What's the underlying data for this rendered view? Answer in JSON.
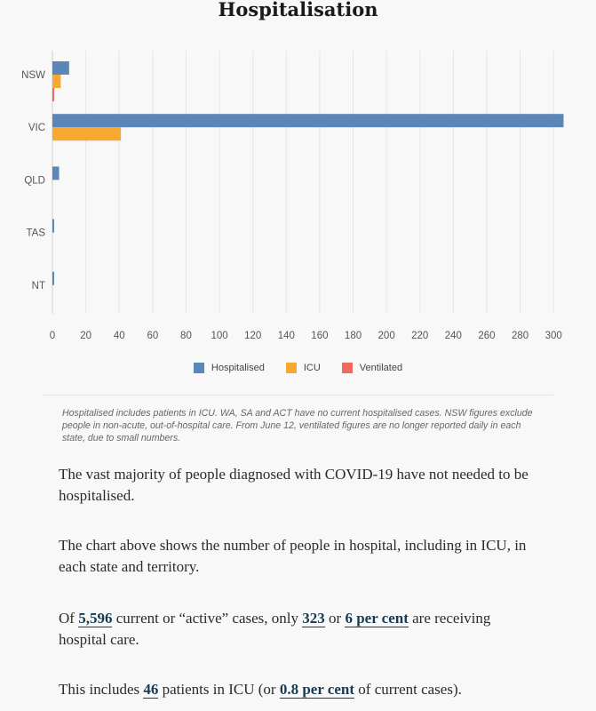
{
  "chart_data": {
    "type": "bar",
    "orientation": "horizontal",
    "title": "Hospitalisation",
    "categories": [
      "NSW",
      "VIC",
      "QLD",
      "TAS",
      "NT"
    ],
    "series": [
      {
        "name": "Hospitalised",
        "color": "#5b86b8",
        "values": [
          10,
          306,
          4,
          1,
          1
        ]
      },
      {
        "name": "ICU",
        "color": "#f8a830",
        "values": [
          5,
          41,
          0,
          0,
          0
        ]
      },
      {
        "name": "Ventilated",
        "color": "#ef6a5d",
        "values": [
          1,
          0,
          0,
          0,
          0
        ]
      }
    ],
    "xlim": [
      0,
      310
    ],
    "xticks": [
      0,
      20,
      40,
      60,
      80,
      100,
      120,
      140,
      160,
      180,
      200,
      220,
      240,
      260,
      280,
      300
    ],
    "grid": true,
    "legend_position": "bottom"
  },
  "note": "Hospitalised includes patients in ICU. WA, SA and ACT have no current hospitalised cases. NSW figures exclude people in non-acute, out-of-hospital care. From June 12, ventilated figures are no longer reported daily in each state, due to small numbers.",
  "paragraphs": {
    "p1": "The vast majority of people diagnosed with COVID-19 have not needed to be hospitalised.",
    "p2": "The chart above shows the number of people in hospital, including in ICU, in each state and territory.",
    "p3": {
      "t1": "Of ",
      "active_cases": "5,596",
      "t2": " current or “active” cases, only ",
      "hospital_count": "323",
      "t3": " or ",
      "hospital_pct": "6 per cent",
      "t4": " are receiving hospital care."
    },
    "p4": {
      "t1": "This includes ",
      "icu_count": "46",
      "t2": " patients in ICU (or ",
      "icu_pct": "0.8 per cent",
      "t3": " of current cases)."
    }
  }
}
